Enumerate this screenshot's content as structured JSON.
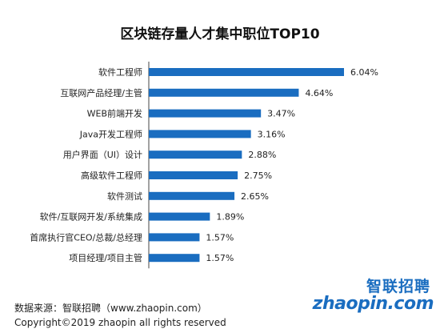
{
  "chart_data": {
    "type": "bar",
    "orientation": "horizontal",
    "title": "区块链存量人才集中职位TOP10",
    "categories": [
      "软件工程师",
      "互联网产品经理/主管",
      "WEB前端开发",
      "Java开发工程师",
      "用户界面（UI）设计",
      "高级软件工程师",
      "软件测试",
      "软件/互联网开发/系统集成",
      "首席执行官CEO/总裁/总经理",
      "项目经理/项目主管"
    ],
    "values": [
      6.04,
      4.64,
      3.47,
      3.16,
      2.88,
      2.75,
      2.65,
      1.89,
      1.57,
      1.57
    ],
    "value_labels": [
      "6.04%",
      "4.64%",
      "3.47%",
      "3.16%",
      "2.88%",
      "2.75%",
      "2.65%",
      "1.89%",
      "1.57%",
      "1.57%"
    ],
    "bar_color": "#1a6dc0",
    "grid": false,
    "legend": "none"
  },
  "footer": {
    "source": "数据来源：智联招聘（www.zhaopin.com）",
    "copyright": "Copyright©2019 zhaopin all rights reserved"
  },
  "logo": {
    "cn": "智联招聘",
    "en": "zhaopin.com"
  }
}
